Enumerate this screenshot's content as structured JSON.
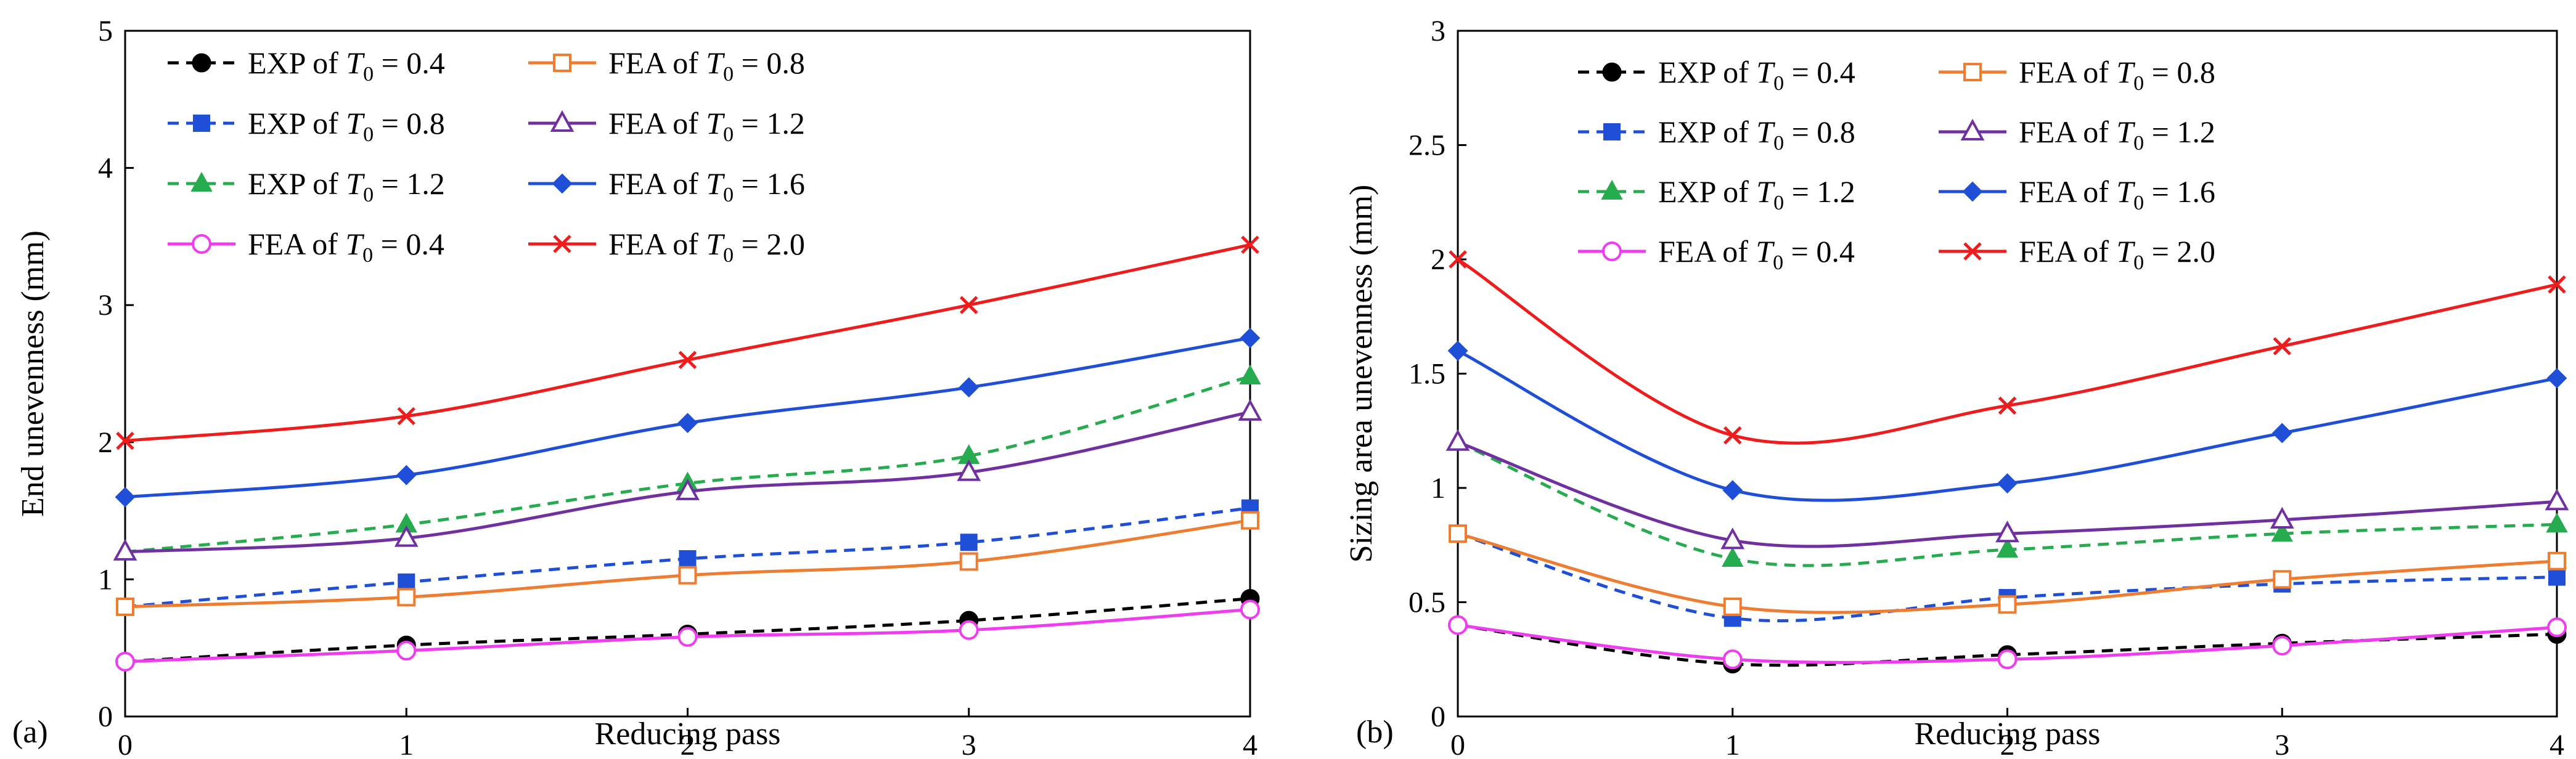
{
  "chart_data": [
    {
      "type": "line",
      "panel_label": "(a)",
      "xlabel": "Reducing pass",
      "ylabel": "End unevenness (mm)",
      "x": [
        0,
        1,
        2,
        3,
        4
      ],
      "xlim": [
        0,
        4
      ],
      "ylim": [
        0,
        5
      ],
      "xticks": [
        "0",
        "1",
        "2",
        "3",
        "4"
      ],
      "yticks": [
        "0",
        "1",
        "2",
        "3",
        "4",
        "5"
      ],
      "grid": false,
      "legend_position": "top-left",
      "series": [
        {
          "name": "EXP of T0 = 0.4",
          "prefix": "EXP of ",
          "sym": "T",
          "sub": "0",
          "suffix": " = 0.4",
          "color": "#000000",
          "dashed": true,
          "marker": "circle-filled",
          "values": [
            0.4,
            0.52,
            0.6,
            0.7,
            0.86
          ]
        },
        {
          "name": "EXP of T0 = 0.8",
          "prefix": "EXP of ",
          "sym": "T",
          "sub": "0",
          "suffix": " = 0.8",
          "color": "#1f4fd6",
          "dashed": true,
          "marker": "square-filled",
          "values": [
            0.8,
            0.98,
            1.15,
            1.27,
            1.52
          ]
        },
        {
          "name": "EXP of T0 = 1.2",
          "prefix": "EXP of ",
          "sym": "T",
          "sub": "0",
          "suffix": " = 1.2",
          "color": "#26ac4e",
          "dashed": true,
          "marker": "triangle-filled",
          "values": [
            1.2,
            1.4,
            1.7,
            1.9,
            2.48
          ]
        },
        {
          "name": "FEA of T0 = 0.4",
          "prefix": "FEA of ",
          "sym": "T",
          "sub": "0",
          "suffix": " = 0.4",
          "color": "#f03cf0",
          "dashed": false,
          "marker": "circle-open",
          "values": [
            0.4,
            0.48,
            0.58,
            0.63,
            0.78
          ]
        },
        {
          "name": "FEA of T0 = 0.8",
          "prefix": "FEA of ",
          "sym": "T",
          "sub": "0",
          "suffix": " = 0.8",
          "color": "#ee7d31",
          "dashed": false,
          "marker": "square-open",
          "values": [
            0.8,
            0.87,
            1.03,
            1.13,
            1.43
          ]
        },
        {
          "name": "FEA of T0 = 1.2",
          "prefix": "FEA of ",
          "sym": "T",
          "sub": "0",
          "suffix": " = 1.2",
          "color": "#7030a0",
          "dashed": false,
          "marker": "triangle-open",
          "values": [
            1.2,
            1.3,
            1.64,
            1.78,
            2.22
          ]
        },
        {
          "name": "FEA of T0 = 1.6",
          "prefix": "FEA of ",
          "sym": "T",
          "sub": "0",
          "suffix": " = 1.6",
          "color": "#1f4fd6",
          "dashed": false,
          "marker": "diamond-filled",
          "values": [
            1.6,
            1.76,
            2.14,
            2.4,
            2.76
          ]
        },
        {
          "name": "FEA of T0 = 2.0",
          "prefix": "FEA of ",
          "sym": "T",
          "sub": "0",
          "suffix": " = 2.0",
          "color": "#ee1c1c",
          "dashed": false,
          "marker": "x",
          "values": [
            2.01,
            2.19,
            2.6,
            3.0,
            3.44
          ]
        }
      ]
    },
    {
      "type": "line",
      "panel_label": "(b)",
      "xlabel": "Reducing pass",
      "ylabel": "Sizing area unevenness (mm)",
      "x": [
        0,
        1,
        2,
        3,
        4
      ],
      "xlim": [
        0,
        4
      ],
      "ylim": [
        0,
        3
      ],
      "xticks": [
        "0",
        "1",
        "2",
        "3",
        "4"
      ],
      "yticks": [
        "0",
        "0.5",
        "1",
        "1.5",
        "2",
        "2.5",
        "3"
      ],
      "grid": false,
      "legend_position": "top",
      "series": [
        {
          "name": "EXP of T0 = 0.4",
          "prefix": "EXP of ",
          "sym": "T",
          "sub": "0",
          "suffix": " = 0.4",
          "color": "#000000",
          "dashed": true,
          "marker": "circle-filled",
          "values": [
            0.4,
            0.23,
            0.27,
            0.32,
            0.36
          ]
        },
        {
          "name": "EXP of T0 = 0.8",
          "prefix": "EXP of ",
          "sym": "T",
          "sub": "0",
          "suffix": " = 0.8",
          "color": "#1f4fd6",
          "dashed": true,
          "marker": "square-filled",
          "values": [
            0.8,
            0.43,
            0.52,
            0.58,
            0.61
          ]
        },
        {
          "name": "EXP of T0 = 1.2",
          "prefix": "EXP of ",
          "sym": "T",
          "sub": "0",
          "suffix": " = 1.2",
          "color": "#26ac4e",
          "dashed": true,
          "marker": "triangle-filled",
          "values": [
            1.2,
            0.69,
            0.73,
            0.8,
            0.84
          ]
        },
        {
          "name": "FEA of T0 = 0.4",
          "prefix": "FEA of ",
          "sym": "T",
          "sub": "0",
          "suffix": " = 0.4",
          "color": "#f03cf0",
          "dashed": false,
          "marker": "circle-open",
          "values": [
            0.4,
            0.25,
            0.25,
            0.31,
            0.39
          ]
        },
        {
          "name": "FEA of T0 = 0.8",
          "prefix": "FEA of ",
          "sym": "T",
          "sub": "0",
          "suffix": " = 0.8",
          "color": "#ee7d31",
          "dashed": false,
          "marker": "square-open",
          "values": [
            0.8,
            0.48,
            0.49,
            0.6,
            0.68
          ]
        },
        {
          "name": "FEA of T0 = 1.2",
          "prefix": "FEA of ",
          "sym": "T",
          "sub": "0",
          "suffix": " = 1.2",
          "color": "#7030a0",
          "dashed": false,
          "marker": "triangle-open",
          "values": [
            1.2,
            0.77,
            0.8,
            0.86,
            0.94
          ]
        },
        {
          "name": "FEA of T0 = 1.6",
          "prefix": "FEA of ",
          "sym": "T",
          "sub": "0",
          "suffix": " = 1.6",
          "color": "#1f4fd6",
          "dashed": false,
          "marker": "diamond-filled",
          "values": [
            1.6,
            0.99,
            1.02,
            1.24,
            1.48
          ]
        },
        {
          "name": "FEA of T0 = 2.0",
          "prefix": "FEA of ",
          "sym": "T",
          "sub": "0",
          "suffix": " = 2.0",
          "color": "#ee1c1c",
          "dashed": false,
          "marker": "x",
          "values": [
            2.0,
            1.23,
            1.36,
            1.62,
            1.89
          ]
        }
      ]
    }
  ]
}
